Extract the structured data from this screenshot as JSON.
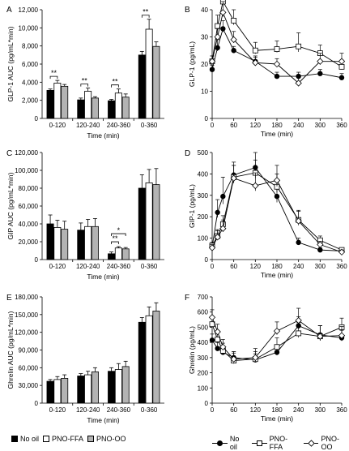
{
  "legend_bar": [
    {
      "label": "No oil",
      "color": "#000000"
    },
    {
      "label": "PNO-FFA",
      "color": "#ffffff"
    },
    {
      "label": "PNO-OO",
      "color": "#b3b3b3"
    }
  ],
  "legend_line": [
    {
      "label": "No oil",
      "marker": "circle-filled"
    },
    {
      "label": "PNO-FFA",
      "marker": "square-open"
    },
    {
      "label": "PNO-OO",
      "marker": "diamond-open"
    }
  ],
  "chart_data": [
    {
      "panel": "A",
      "type": "bar",
      "ylabel": "GLP-1 AUC (pg/mL*min)",
      "xlabel": "Time (min)",
      "ylim": [
        0,
        12000
      ],
      "yticks": [
        0,
        2000,
        4000,
        6000,
        8000,
        10000,
        12000
      ],
      "ytick_labels": [
        "0",
        "2,000",
        "4,000",
        "6,000",
        "8,000",
        "10,000",
        "12,000"
      ],
      "categories": [
        "0-120",
        "120-240",
        "240-360",
        "0-360"
      ],
      "series": [
        {
          "name": "No oil",
          "values": [
            3100,
            2050,
            1950,
            7000
          ],
          "errors": [
            150,
            200,
            150,
            400
          ]
        },
        {
          "name": "PNO-FFA",
          "values": [
            3900,
            3000,
            2800,
            9850
          ],
          "errors": [
            300,
            350,
            450,
            1100
          ]
        },
        {
          "name": "PNO-OO",
          "values": [
            3550,
            2250,
            2350,
            7950
          ],
          "errors": [
            200,
            150,
            350,
            500
          ]
        }
      ],
      "annotations": [
        {
          "text": "**",
          "category": 0
        },
        {
          "text": "**",
          "category": 1
        },
        {
          "text": "**",
          "category": 2
        },
        {
          "text": "**",
          "category": 3
        }
      ]
    },
    {
      "panel": "B",
      "type": "line",
      "ylabel": "GLP-1 (pg/mL)",
      "xlabel": "Time (min)",
      "ylim": [
        0,
        40
      ],
      "yticks": [
        0,
        10,
        20,
        30,
        40
      ],
      "xlim": [
        0,
        360
      ],
      "xticks": [
        0,
        60,
        120,
        180,
        240,
        300,
        360
      ],
      "x": [
        0,
        15,
        30,
        60,
        120,
        180,
        240,
        300,
        360
      ],
      "series": [
        {
          "name": "No oil",
          "marker": "circle-filled",
          "values": [
            18,
            26,
            33,
            25,
            21,
            15.5,
            15.5,
            16.5,
            15
          ],
          "errors": [
            1.5,
            3,
            3,
            1.5,
            2,
            1.5,
            1.5,
            1.5,
            1.5
          ]
        },
        {
          "name": "PNO-FFA",
          "marker": "square-open",
          "values": [
            21,
            34,
            43,
            36,
            25,
            25.5,
            26.5,
            24,
            19
          ],
          "errors": [
            2,
            4,
            4,
            4,
            3,
            3,
            5,
            3,
            2.5
          ]
        },
        {
          "name": "PNO-OO",
          "marker": "diamond-open",
          "values": [
            21,
            30,
            39,
            29,
            20.5,
            20,
            13,
            21,
            21
          ],
          "errors": [
            2,
            3,
            4,
            3,
            2,
            2,
            3,
            3,
            3
          ]
        }
      ]
    },
    {
      "panel": "C",
      "type": "bar",
      "ylabel": "GIP AUC (pg/mL*min)",
      "xlabel": "Time (min)",
      "ylim": [
        0,
        120000
      ],
      "yticks": [
        0,
        20000,
        40000,
        60000,
        80000,
        100000,
        120000
      ],
      "ytick_labels": [
        "0",
        "20,000",
        "40,000",
        "60,000",
        "80,000",
        "100,000",
        "120,000"
      ],
      "categories": [
        "0-120",
        "120-240",
        "240-360",
        "0-360"
      ],
      "series": [
        {
          "name": "No oil",
          "values": [
            40000,
            33000,
            6500,
            80000
          ],
          "errors": [
            10000,
            8000,
            2000,
            15000
          ]
        },
        {
          "name": "PNO-FFA",
          "values": [
            36000,
            37000,
            13000,
            86000
          ],
          "errors": [
            8000,
            8000,
            1500,
            15000
          ]
        },
        {
          "name": "PNO-OO",
          "values": [
            34000,
            37000,
            12000,
            84000
          ],
          "errors": [
            9000,
            9000,
            1500,
            18000
          ]
        }
      ],
      "annotations": [
        {
          "text": "**",
          "category": 2,
          "pair": [
            0,
            1
          ]
        },
        {
          "text": "*",
          "category": 2,
          "pair": [
            0,
            2
          ]
        }
      ]
    },
    {
      "panel": "D",
      "type": "line",
      "ylabel": "GIP-1 (pg/mL)",
      "xlabel": "Time (min)",
      "ylim": [
        0,
        500
      ],
      "yticks": [
        0,
        100,
        200,
        300,
        400,
        500
      ],
      "xlim": [
        0,
        360
      ],
      "xticks": [
        0,
        60,
        120,
        180,
        240,
        300,
        360
      ],
      "x": [
        0,
        15,
        30,
        60,
        120,
        180,
        240,
        300,
        360
      ],
      "series": [
        {
          "name": "No oil",
          "marker": "circle-filled",
          "values": [
            60,
            220,
            295,
            395,
            430,
            295,
            80,
            45,
            40
          ],
          "errors": [
            15,
            60,
            90,
            60,
            70,
            70,
            20,
            10,
            10
          ]
        },
        {
          "name": "PNO-FFA",
          "marker": "square-open",
          "values": [
            65,
            110,
            165,
            385,
            405,
            340,
            185,
            90,
            45
          ],
          "errors": [
            15,
            30,
            40,
            55,
            60,
            60,
            40,
            20,
            10
          ]
        },
        {
          "name": "PNO-OO",
          "marker": "diamond-open",
          "values": [
            55,
            105,
            145,
            380,
            345,
            370,
            180,
            70,
            35
          ],
          "errors": [
            15,
            30,
            40,
            60,
            60,
            70,
            50,
            15,
            10
          ]
        }
      ]
    },
    {
      "panel": "E",
      "type": "bar",
      "ylabel": "Ghrelin AUC (pg/mL*min)",
      "xlabel": "Time (min)",
      "ylim": [
        0,
        180000
      ],
      "yticks": [
        0,
        30000,
        60000,
        90000,
        120000,
        150000,
        180000
      ],
      "ytick_labels": [
        "0",
        "30,000",
        "60,000",
        "90,000",
        "120,000",
        "150,000",
        "180,000"
      ],
      "categories": [
        "0-120",
        "120-240",
        "240-360",
        "0-360"
      ],
      "series": [
        {
          "name": "No oil",
          "values": [
            37000,
            46000,
            54000,
            137000
          ],
          "errors": [
            3000,
            4000,
            6000,
            8000
          ]
        },
        {
          "name": "PNO-FFA",
          "values": [
            40000,
            48000,
            57000,
            148000
          ],
          "errors": [
            5000,
            6000,
            10000,
            15000
          ]
        },
        {
          "name": "PNO-OO",
          "values": [
            42000,
            53000,
            62000,
            156000
          ],
          "errors": [
            6000,
            7000,
            9000,
            14000
          ]
        }
      ]
    },
    {
      "panel": "F",
      "type": "line",
      "ylabel": "Ghrelin (pg/mL)",
      "xlabel": "Time (min)",
      "ylim": [
        0,
        700
      ],
      "yticks": [
        0,
        100,
        200,
        300,
        400,
        500,
        600,
        700
      ],
      "xlim": [
        0,
        360
      ],
      "xticks": [
        0,
        60,
        120,
        180,
        240,
        300,
        360
      ],
      "x": [
        0,
        15,
        30,
        60,
        120,
        180,
        240,
        300,
        360
      ],
      "series": [
        {
          "name": "No oil",
          "marker": "circle-filled",
          "values": [
            415,
            360,
            335,
            300,
            285,
            335,
            510,
            450,
            430
          ],
          "errors": [
            40,
            40,
            40,
            40,
            40,
            50,
            60,
            60,
            50
          ]
        },
        {
          "name": "PNO-FFA",
          "marker": "square-open",
          "values": [
            520,
            420,
            345,
            280,
            290,
            370,
            460,
            440,
            500
          ],
          "errors": [
            50,
            50,
            50,
            50,
            50,
            60,
            70,
            70,
            60
          ]
        },
        {
          "name": "PNO-OO",
          "marker": "diamond-open",
          "values": [
            565,
            470,
            370,
            290,
            300,
            475,
            545,
            440,
            445
          ],
          "errors": [
            50,
            50,
            50,
            50,
            60,
            60,
            80,
            70,
            60
          ]
        }
      ]
    }
  ]
}
